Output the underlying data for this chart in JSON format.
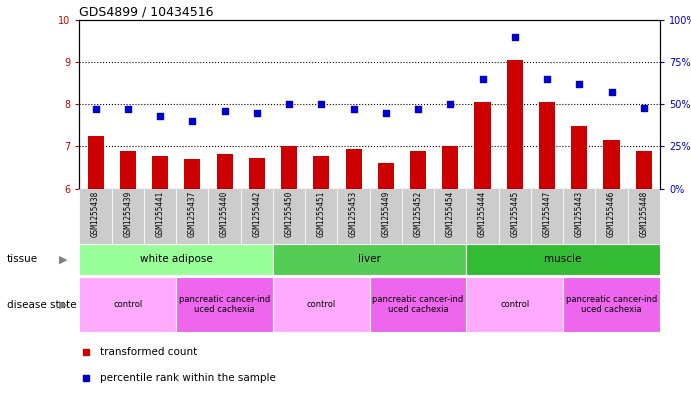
{
  "title": "GDS4899 / 10434516",
  "samples": [
    "GSM1255438",
    "GSM1255439",
    "GSM1255441",
    "GSM1255437",
    "GSM1255440",
    "GSM1255442",
    "GSM1255450",
    "GSM1255451",
    "GSM1255453",
    "GSM1255449",
    "GSM1255452",
    "GSM1255454",
    "GSM1255444",
    "GSM1255445",
    "GSM1255447",
    "GSM1255443",
    "GSM1255446",
    "GSM1255448"
  ],
  "transformed_count": [
    7.25,
    6.88,
    6.78,
    6.7,
    6.83,
    6.72,
    7.0,
    6.78,
    6.95,
    6.6,
    6.88,
    7.0,
    8.05,
    9.05,
    8.05,
    7.48,
    7.15,
    6.88
  ],
  "percentile_rank": [
    47,
    47,
    43,
    40,
    46,
    45,
    50,
    50,
    47,
    45,
    47,
    50,
    65,
    90,
    65,
    62,
    57,
    48
  ],
  "ylim_left": [
    6,
    10
  ],
  "ylim_right": [
    0,
    100
  ],
  "yticks_left": [
    6,
    7,
    8,
    9,
    10
  ],
  "yticks_right": [
    0,
    25,
    50,
    75,
    100
  ],
  "bar_color": "#cc0000",
  "scatter_color": "#0000cc",
  "tissue_groups": [
    {
      "label": "white adipose",
      "start": 0,
      "end": 6,
      "color": "#99ff99"
    },
    {
      "label": "liver",
      "start": 6,
      "end": 12,
      "color": "#55cc55"
    },
    {
      "label": "muscle",
      "start": 12,
      "end": 18,
      "color": "#33bb33"
    }
  ],
  "disease_state_groups": [
    {
      "label": "control",
      "start": 0,
      "end": 3,
      "color": "#ffaaff"
    },
    {
      "label": "pancreatic cancer-ind\nuced cachexia",
      "start": 3,
      "end": 6,
      "color": "#ee66ee"
    },
    {
      "label": "control",
      "start": 6,
      "end": 9,
      "color": "#ffaaff"
    },
    {
      "label": "pancreatic cancer-ind\nuced cachexia",
      "start": 9,
      "end": 12,
      "color": "#ee66ee"
    },
    {
      "label": "control",
      "start": 12,
      "end": 15,
      "color": "#ffaaff"
    },
    {
      "label": "pancreatic cancer-ind\nuced cachexia",
      "start": 15,
      "end": 18,
      "color": "#ee66ee"
    }
  ],
  "legend_items": [
    {
      "color": "#cc0000",
      "label": "transformed count"
    },
    {
      "color": "#0000cc",
      "label": "percentile rank within the sample"
    }
  ],
  "bar_width": 0.5,
  "dotted_grid_values": [
    7,
    8,
    9
  ],
  "background_color": "#ffffff",
  "label_bg_color": "#cccccc",
  "chart_bg_color": "#ffffff"
}
